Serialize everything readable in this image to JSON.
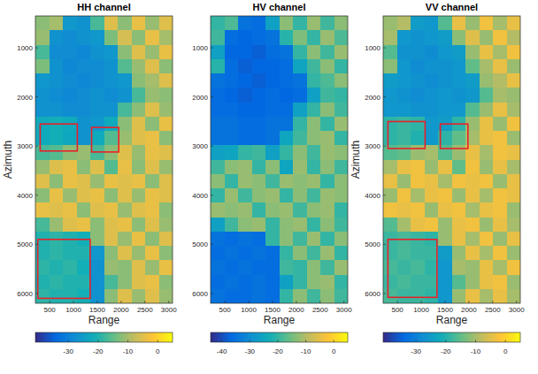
{
  "chart_data": [
    {
      "type": "heatmap",
      "title": "HH channel",
      "xlabel": "Range",
      "ylabel": "Azimuth",
      "xlim": [
        200,
        3080
      ],
      "ylim": [
        350,
        6200
      ],
      "xticks": [
        500,
        1000,
        1500,
        2000,
        2500,
        3000
      ],
      "yticks": [
        1000,
        2000,
        3000,
        4000,
        5000,
        6000
      ],
      "clim": [
        -41,
        5
      ],
      "cticks": [
        -30,
        -20,
        -10,
        0
      ],
      "boxes": [
        {
          "x": [
            300,
            1080
          ],
          "y": [
            2550,
            3100
          ]
        },
        {
          "x": [
            1380,
            1950
          ],
          "y": [
            2620,
            3120
          ]
        },
        {
          "x": [
            250,
            1350
          ],
          "y": [
            4900,
            6100
          ]
        }
      ],
      "cells": [
        [
          -12,
          -10,
          -26,
          -27,
          -17,
          -5,
          -12,
          -4,
          -11,
          -5
        ],
        [
          -11,
          -27,
          -28,
          -27,
          -26,
          -13,
          -6,
          -12,
          -4,
          -10
        ],
        [
          -17,
          -28,
          -28,
          -29,
          -27,
          -26,
          -12,
          -5,
          -11,
          -4
        ],
        [
          -13,
          -27,
          -29,
          -28,
          -28,
          -27,
          -16,
          -11,
          -5,
          -12
        ],
        [
          -26,
          -27,
          -28,
          -29,
          -28,
          -27,
          -26,
          -12,
          -10,
          -5
        ],
        [
          -27,
          -28,
          -29,
          -28,
          -27,
          -28,
          -27,
          -17,
          -11,
          -12
        ],
        [
          -27,
          -27,
          -28,
          -28,
          -27,
          -27,
          -17,
          -12,
          -5,
          -11
        ],
        [
          -22,
          -21,
          -22,
          -27,
          -26,
          -22,
          -12,
          -5,
          -12,
          -4
        ],
        [
          -22,
          -21,
          -23,
          -27,
          -22,
          -16,
          -11,
          -5,
          -4,
          -12
        ],
        [
          -17,
          -16,
          -12,
          -11,
          -17,
          -12,
          -5,
          -11,
          -4,
          -5
        ],
        [
          -11,
          -5,
          -4,
          -12,
          -5,
          -16,
          -4,
          -12,
          -5,
          -11
        ],
        [
          -5,
          -12,
          -4,
          -5,
          -11,
          -4,
          -5,
          -4,
          -12,
          -5
        ],
        [
          -12,
          -4,
          -11,
          -5,
          -4,
          -12,
          -5,
          -11,
          -4,
          -5
        ],
        [
          -4,
          -5,
          -4,
          -12,
          -5,
          -4,
          -11,
          -5,
          -4,
          -12
        ],
        [
          -17,
          -11,
          -5,
          -4,
          -12,
          -5,
          -4,
          -12,
          -5,
          -11
        ],
        [
          -20,
          -19,
          -20,
          -21,
          -12,
          -5,
          -11,
          -4,
          -12,
          -5
        ],
        [
          -20,
          -19,
          -20,
          -20,
          -26,
          -12,
          -5,
          -11,
          -4,
          -12
        ],
        [
          -19,
          -20,
          -19,
          -21,
          -27,
          -11,
          -12,
          -5,
          -11,
          -4
        ],
        [
          -20,
          -19,
          -20,
          -20,
          -27,
          -17,
          -12,
          -5,
          -4,
          -12
        ],
        [
          -19,
          -20,
          -20,
          -21,
          -27,
          -12,
          -5,
          -11,
          -5,
          -11
        ]
      ]
    },
    {
      "type": "heatmap",
      "title": "HV channel",
      "xlabel": "Range",
      "xlim": [
        200,
        3080
      ],
      "ylim": [
        350,
        6200
      ],
      "xticks": [
        500,
        1000,
        1500,
        2000,
        2500,
        3000
      ],
      "yticks": [
        1000,
        2000,
        3000,
        4000,
        5000,
        6000
      ],
      "clim": [
        -44,
        5
      ],
      "cticks": [
        -40,
        -30,
        -20,
        -10,
        0
      ],
      "cells": [
        [
          -20,
          -18,
          -35,
          -36,
          -26,
          -13,
          -20,
          -12,
          -19,
          -13
        ],
        [
          -19,
          -36,
          -37,
          -36,
          -35,
          -21,
          -14,
          -20,
          -12,
          -18
        ],
        [
          -26,
          -37,
          -37,
          -38,
          -36,
          -35,
          -20,
          -13,
          -19,
          -12
        ],
        [
          -21,
          -36,
          -38,
          -37,
          -37,
          -36,
          -25,
          -19,
          -13,
          -20
        ],
        [
          -35,
          -36,
          -37,
          -38,
          -37,
          -36,
          -35,
          -20,
          -18,
          -13
        ],
        [
          -36,
          -37,
          -38,
          -37,
          -36,
          -37,
          -36,
          -26,
          -19,
          -20
        ],
        [
          -36,
          -36,
          -37,
          -37,
          -36,
          -36,
          -26,
          -20,
          -13,
          -19
        ],
        [
          -35,
          -35,
          -36,
          -36,
          -35,
          -35,
          -20,
          -13,
          -20,
          -12
        ],
        [
          -35,
          -35,
          -36,
          -36,
          -35,
          -25,
          -19,
          -13,
          -12,
          -20
        ],
        [
          -26,
          -25,
          -20,
          -19,
          -26,
          -20,
          -13,
          -19,
          -12,
          -13
        ],
        [
          -19,
          -13,
          -12,
          -20,
          -13,
          -25,
          -12,
          -20,
          -13,
          -19
        ],
        [
          -13,
          -20,
          -12,
          -13,
          -19,
          -12,
          -13,
          -12,
          -20,
          -13
        ],
        [
          -20,
          -12,
          -19,
          -13,
          -12,
          -20,
          -13,
          -19,
          -12,
          -13
        ],
        [
          -12,
          -13,
          -12,
          -20,
          -13,
          -12,
          -19,
          -13,
          -12,
          -20
        ],
        [
          -26,
          -19,
          -13,
          -12,
          -20,
          -13,
          -12,
          -20,
          -13,
          -19
        ],
        [
          -35,
          -36,
          -35,
          -36,
          -20,
          -13,
          -19,
          -12,
          -20,
          -13
        ],
        [
          -36,
          -35,
          -36,
          -35,
          -36,
          -20,
          -13,
          -19,
          -12,
          -20
        ],
        [
          -35,
          -36,
          -35,
          -36,
          -36,
          -19,
          -20,
          -13,
          -19,
          -12
        ],
        [
          -36,
          -35,
          -36,
          -35,
          -36,
          -26,
          -20,
          -13,
          -12,
          -20
        ],
        [
          -35,
          -36,
          -36,
          -35,
          -36,
          -20,
          -13,
          -19,
          -13,
          -19
        ]
      ]
    },
    {
      "type": "heatmap",
      "title": "VV channel",
      "xlabel": "Range",
      "ylabel": "Azimuth",
      "xlim": [
        200,
        3080
      ],
      "ylim": [
        350,
        6200
      ],
      "xticks": [
        500,
        1000,
        1500,
        2000,
        2500,
        3000
      ],
      "yticks": [
        1000,
        2000,
        3000,
        4000,
        5000,
        6000
      ],
      "clim": [
        -41,
        5
      ],
      "cticks": [
        -30,
        -20,
        -10,
        0
      ],
      "boxes": [
        {
          "x": [
            300,
            1080
          ],
          "y": [
            2500,
            3050
          ]
        },
        {
          "x": [
            1400,
            1980
          ],
          "y": [
            2550,
            3050
          ]
        },
        {
          "x": [
            300,
            1330
          ],
          "y": [
            4900,
            6080
          ]
        }
      ],
      "cells": [
        [
          -11,
          -9,
          -25,
          -26,
          -16,
          -4,
          -11,
          -3,
          -10,
          -4
        ],
        [
          -10,
          -26,
          -27,
          -26,
          -25,
          -12,
          -5,
          -11,
          -3,
          -9
        ],
        [
          -16,
          -27,
          -27,
          -28,
          -26,
          -25,
          -11,
          -4,
          -10,
          -3
        ],
        [
          -12,
          -26,
          -28,
          -27,
          -27,
          -26,
          -15,
          -10,
          -4,
          -11
        ],
        [
          -25,
          -26,
          -27,
          -28,
          -27,
          -26,
          -25,
          -11,
          -9,
          -4
        ],
        [
          -26,
          -27,
          -28,
          -27,
          -26,
          -27,
          -26,
          -16,
          -10,
          -11
        ],
        [
          -26,
          -26,
          -27,
          -27,
          -26,
          -26,
          -16,
          -11,
          -4,
          -10
        ],
        [
          -19,
          -18,
          -19,
          -26,
          -25,
          -19,
          -11,
          -4,
          -11,
          -3
        ],
        [
          -19,
          -18,
          -20,
          -26,
          -19,
          -15,
          -10,
          -4,
          -3,
          -11
        ],
        [
          -16,
          -15,
          -11,
          -10,
          -16,
          -11,
          -4,
          -10,
          -3,
          -4
        ],
        [
          -10,
          -4,
          -3,
          -11,
          -4,
          -15,
          -3,
          -11,
          -4,
          -10
        ],
        [
          -4,
          -11,
          -3,
          -4,
          -10,
          -3,
          -4,
          -3,
          -11,
          -4
        ],
        [
          -11,
          -3,
          -10,
          -4,
          -3,
          -11,
          -4,
          -10,
          -3,
          -4
        ],
        [
          -3,
          -4,
          -3,
          -11,
          -4,
          -3,
          -10,
          -4,
          -3,
          -11
        ],
        [
          -16,
          -10,
          -4,
          -3,
          -11,
          -4,
          -3,
          -11,
          -4,
          -10
        ],
        [
          -18,
          -17,
          -18,
          -19,
          -11,
          -4,
          -10,
          -3,
          -11,
          -4
        ],
        [
          -18,
          -17,
          -18,
          -18,
          -25,
          -11,
          -4,
          -10,
          -3,
          -11
        ],
        [
          -17,
          -18,
          -17,
          -19,
          -26,
          -10,
          -11,
          -4,
          -10,
          -3
        ],
        [
          -18,
          -17,
          -18,
          -18,
          -26,
          -16,
          -11,
          -4,
          -3,
          -11
        ],
        [
          -17,
          -18,
          -18,
          -19,
          -26,
          -11,
          -4,
          -10,
          -4,
          -10
        ]
      ]
    }
  ]
}
